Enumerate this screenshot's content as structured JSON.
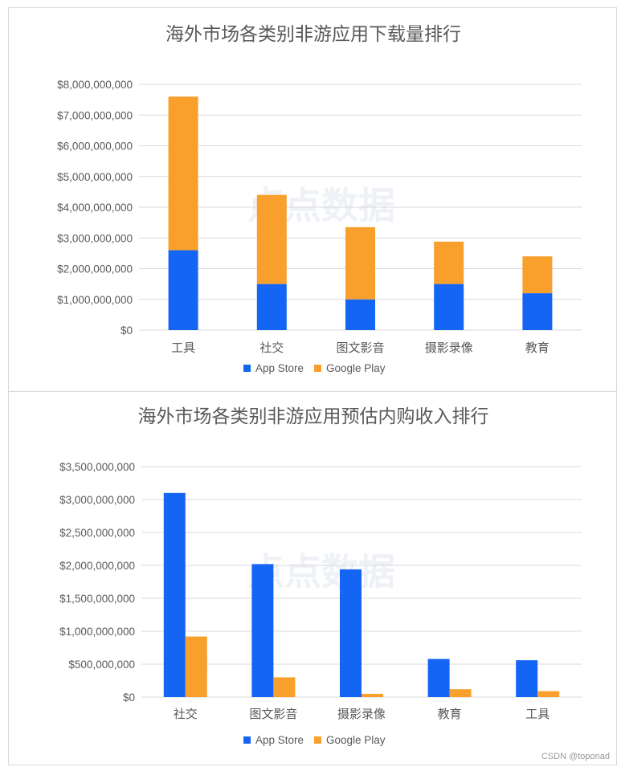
{
  "colors": {
    "app_store": "#1565f5",
    "google_play": "#f89f2c"
  },
  "watermark": "点点数据",
  "footer": "CSDN @toponad",
  "chart_data": [
    {
      "type": "bar",
      "stacked": true,
      "title": "海外市场各类别非游应用下载量排行",
      "categories": [
        "工具",
        "社交",
        "图文影音",
        "摄影录像",
        "教育"
      ],
      "series": [
        {
          "name": "App Store",
          "values": [
            2600000000,
            1500000000,
            1000000000,
            1500000000,
            1200000000
          ]
        },
        {
          "name": "Google Play",
          "values": [
            5000000000,
            2900000000,
            2350000000,
            1380000000,
            1200000000
          ]
        }
      ],
      "ylim": [
        0,
        8000000000
      ],
      "yticks": [
        "$0",
        "$1,000,000,000",
        "$2,000,000,000",
        "$3,000,000,000",
        "$4,000,000,000",
        "$5,000,000,000",
        "$6,000,000,000",
        "$7,000,000,000",
        "$8,000,000,000"
      ],
      "legend": [
        "App Store",
        "Google Play"
      ],
      "legend_position": "bottom"
    },
    {
      "type": "bar",
      "stacked": false,
      "title": "海外市场各类别非游应用预估内购收入排行",
      "categories": [
        "社交",
        "图文影音",
        "摄影录像",
        "教育",
        "工具"
      ],
      "series": [
        {
          "name": "App Store",
          "values": [
            3100000000,
            2020000000,
            1940000000,
            580000000,
            560000000
          ]
        },
        {
          "name": "Google Play",
          "values": [
            920000000,
            300000000,
            50000000,
            120000000,
            90000000
          ]
        }
      ],
      "ylim": [
        0,
        3500000000
      ],
      "yticks": [
        "$0",
        "$500,000,000",
        "$1,000,000,000",
        "$1,500,000,000",
        "$2,000,000,000",
        "$2,500,000,000",
        "$3,000,000,000",
        "$3,500,000,000"
      ],
      "legend": [
        "App Store",
        "Google Play"
      ],
      "legend_position": "bottom"
    }
  ]
}
